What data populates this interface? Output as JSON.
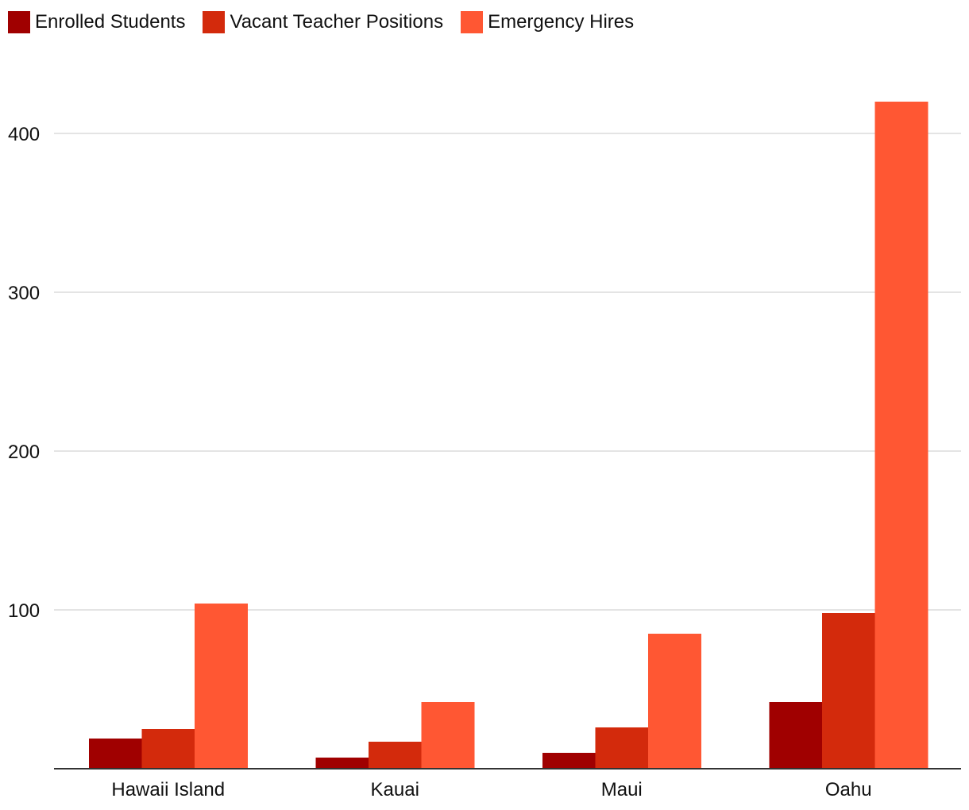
{
  "chart_data": {
    "type": "bar",
    "categories": [
      "Hawaii Island",
      "Kauai",
      "Maui",
      "Oahu"
    ],
    "series": [
      {
        "name": "Enrolled Students",
        "color": "#a00000",
        "values": [
          19,
          7,
          10,
          42
        ]
      },
      {
        "name": "Vacant Teacher Positions",
        "color": "#d32a0c",
        "values": [
          25,
          17,
          26,
          98
        ]
      },
      {
        "name": "Emergency Hires",
        "color": "#ff5733",
        "values": [
          104,
          42,
          85,
          420
        ]
      }
    ],
    "ylim": [
      0,
      420
    ],
    "yticks": [
      100,
      200,
      300,
      400
    ],
    "grid": true,
    "legend": "top-left",
    "title": "",
    "xlabel": "",
    "ylabel": ""
  }
}
